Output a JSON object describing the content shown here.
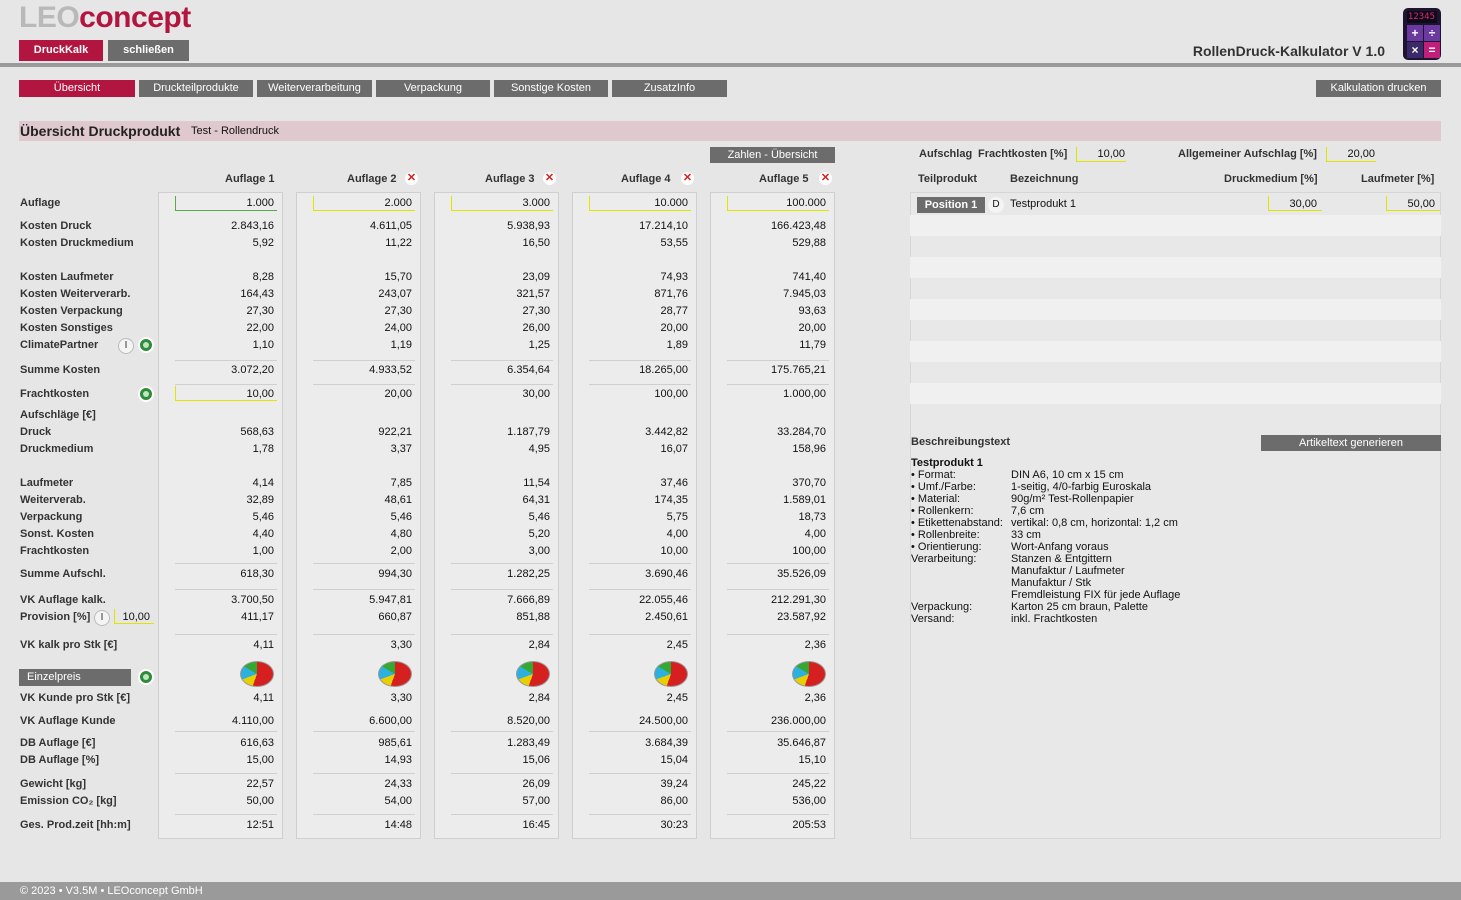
{
  "app": {
    "logo_gray": "LEO",
    "logo_red": "concept",
    "title": "RollenDruck-Kalkulator V 1.0",
    "calc_display": "12345"
  },
  "top_buttons": {
    "druckkalk": "DruckKalk",
    "close": "schließen"
  },
  "tabs": [
    "Übersicht",
    "Druckteilprodukte",
    "Weiterverarbeitung",
    "Verpackung",
    "Sonstige Kosten",
    "ZusatzInfo"
  ],
  "print_button": "Kalkulation drucken",
  "section": {
    "title": "Übersicht Druckprodukt",
    "subtitle": "Test - Rollendruck"
  },
  "zahlen_button": "Zahlen - Übersicht",
  "row_labels": {
    "auflage": "Auflage",
    "kosten_druck": "Kosten Druck",
    "kosten_druckmedium": "Kosten Druckmedium",
    "kosten_laufmeter": "Kosten Laufmeter",
    "kosten_weiterverarb": "Kosten Weiterverarb.",
    "kosten_verpackung": "Kosten Verpackung",
    "kosten_sonstiges": "Kosten Sonstiges",
    "climate": "ClimatePartner",
    "summe_kosten": "Summe Kosten",
    "frachtkosten": "Frachtkosten",
    "aufschlaege": "Aufschläge [€]",
    "druck": "Druck",
    "druckmedium": "Druckmedium",
    "laufmeter": "Laufmeter",
    "weiterverab": "Weiterverab.",
    "verpackung": "Verpackung",
    "sonst_kosten": "Sonst. Kosten",
    "frachtkosten2": "Frachtkosten",
    "summe_aufschl": "Summe Aufschl.",
    "vk_auflage_kalk": "VK Auflage kalk.",
    "provision": "Provision [%]",
    "vk_kalk_stk": "VK kalk pro Stk [€]",
    "einzelpreis": "Einzelpreis",
    "vk_kunde_stk": "VK Kunde pro Stk [€]",
    "vk_auflage_kunde": "VK Auflage Kunde",
    "db_auflage_eur": "DB Auflage [€]",
    "db_auflage_pct": "DB Auflage [%]",
    "gewicht": "Gewicht [kg]",
    "emission": "Emission CO₂ [kg]",
    "prodzeit": "Ges. Prod.zeit [hh:m]"
  },
  "provision_value": "10,00",
  "columns": [
    {
      "header": "Auflage 1",
      "auflage": "1.000",
      "kosten_druck": "2.843,16",
      "kosten_druckmedium": "5,92",
      "kosten_laufmeter": "8,28",
      "kosten_weiterverarb": "164,43",
      "kosten_verpackung": "27,30",
      "kosten_sonstiges": "22,00",
      "climate": "1,10",
      "summe_kosten": "3.072,20",
      "frachtkosten": "10,00",
      "druck": "568,63",
      "druckmedium": "1,78",
      "laufmeter": "4,14",
      "weiterverab": "32,89",
      "verpackung": "5,46",
      "sonst_kosten": "4,40",
      "frachtkosten2": "1,00",
      "summe_aufschl": "618,30",
      "vk_auflage_kalk": "3.700,50",
      "provision": "411,17",
      "vk_kalk_stk": "4,11",
      "vk_kunde_stk": "4,11",
      "vk_auflage_kunde": "4.110,00",
      "db_auflage_eur": "616,63",
      "db_auflage_pct": "15,00",
      "gewicht": "22,57",
      "emission": "50,00",
      "prodzeit": "12:51"
    },
    {
      "header": "Auflage 2",
      "auflage": "2.000",
      "kosten_druck": "4.611,05",
      "kosten_druckmedium": "11,22",
      "kosten_laufmeter": "15,70",
      "kosten_weiterverarb": "243,07",
      "kosten_verpackung": "27,30",
      "kosten_sonstiges": "24,00",
      "climate": "1,19",
      "summe_kosten": "4.933,52",
      "frachtkosten": "20,00",
      "druck": "922,21",
      "druckmedium": "3,37",
      "laufmeter": "7,85",
      "weiterverab": "48,61",
      "verpackung": "5,46",
      "sonst_kosten": "4,80",
      "frachtkosten2": "2,00",
      "summe_aufschl": "994,30",
      "vk_auflage_kalk": "5.947,81",
      "provision": "660,87",
      "vk_kalk_stk": "3,30",
      "vk_kunde_stk": "3,30",
      "vk_auflage_kunde": "6.600,00",
      "db_auflage_eur": "985,61",
      "db_auflage_pct": "14,93",
      "gewicht": "24,33",
      "emission": "54,00",
      "prodzeit": "14:48"
    },
    {
      "header": "Auflage 3",
      "auflage": "3.000",
      "kosten_druck": "5.938,93",
      "kosten_druckmedium": "16,50",
      "kosten_laufmeter": "23,09",
      "kosten_weiterverarb": "321,57",
      "kosten_verpackung": "27,30",
      "kosten_sonstiges": "26,00",
      "climate": "1,25",
      "summe_kosten": "6.354,64",
      "frachtkosten": "30,00",
      "druck": "1.187,79",
      "druckmedium": "4,95",
      "laufmeter": "11,54",
      "weiterverab": "64,31",
      "verpackung": "5,46",
      "sonst_kosten": "5,20",
      "frachtkosten2": "3,00",
      "summe_aufschl": "1.282,25",
      "vk_auflage_kalk": "7.666,89",
      "provision": "851,88",
      "vk_kalk_stk": "2,84",
      "vk_kunde_stk": "2,84",
      "vk_auflage_kunde": "8.520,00",
      "db_auflage_eur": "1.283,49",
      "db_auflage_pct": "15,06",
      "gewicht": "26,09",
      "emission": "57,00",
      "prodzeit": "16:45"
    },
    {
      "header": "Auflage 4",
      "auflage": "10.000",
      "kosten_druck": "17.214,10",
      "kosten_druckmedium": "53,55",
      "kosten_laufmeter": "74,93",
      "kosten_weiterverarb": "871,76",
      "kosten_verpackung": "28,77",
      "kosten_sonstiges": "20,00",
      "climate": "1,89",
      "summe_kosten": "18.265,00",
      "frachtkosten": "100,00",
      "druck": "3.442,82",
      "druckmedium": "16,07",
      "laufmeter": "37,46",
      "weiterverab": "174,35",
      "verpackung": "5,75",
      "sonst_kosten": "4,00",
      "frachtkosten2": "10,00",
      "summe_aufschl": "3.690,46",
      "vk_auflage_kalk": "22.055,46",
      "provision": "2.450,61",
      "vk_kalk_stk": "2,45",
      "vk_kunde_stk": "2,45",
      "vk_auflage_kunde": "24.500,00",
      "db_auflage_eur": "3.684,39",
      "db_auflage_pct": "15,04",
      "gewicht": "39,24",
      "emission": "86,00",
      "prodzeit": "30:23"
    },
    {
      "header": "Auflage 5",
      "auflage": "100.000",
      "kosten_druck": "166.423,48",
      "kosten_druckmedium": "529,88",
      "kosten_laufmeter": "741,40",
      "kosten_weiterverarb": "7.945,03",
      "kosten_verpackung": "93,63",
      "kosten_sonstiges": "20,00",
      "climate": "11,79",
      "summe_kosten": "175.765,21",
      "frachtkosten": "1.000,00",
      "druck": "33.284,70",
      "druckmedium": "158,96",
      "laufmeter": "370,70",
      "weiterverab": "1.589,01",
      "verpackung": "18,73",
      "sonst_kosten": "4,00",
      "frachtkosten2": "100,00",
      "summe_aufschl": "35.526,09",
      "vk_auflage_kalk": "212.291,30",
      "provision": "23.587,92",
      "vk_kalk_stk": "2,36",
      "vk_kunde_stk": "2,36",
      "vk_auflage_kunde": "236.000,00",
      "db_auflage_eur": "35.646,87",
      "db_auflage_pct": "15,10",
      "gewicht": "245,22",
      "emission": "536,00",
      "prodzeit": "205:53"
    }
  ],
  "right": {
    "aufschlag_label": "Aufschlag",
    "fracht_label": "Frachtkosten [%]",
    "fracht_value": "10,00",
    "allg_label": "Allgemeiner Aufschlag [%]",
    "allg_value": "20,00",
    "col_teilprodukt": "Teilprodukt",
    "col_bezeichnung": "Bezeichnung",
    "col_druckmedium": "Druckmedium [%]",
    "col_laufmeter": "Laufmeter [%]",
    "position_label": "Position 1",
    "d_label": "D",
    "position_name": "Testprodukt 1",
    "position_druckmedium": "30,00",
    "position_laufmeter": "50,00",
    "beschreibung_label": "Beschreibungstext",
    "artikeltext_button": "Artikeltext generieren",
    "desc_title": "Testprodukt 1",
    "desc_rows": [
      [
        "• Format:",
        "DIN A6, 10 cm x 15 cm"
      ],
      [
        "• Umf./Farbe:",
        "1-seitig, 4/0-farbig Euroskala"
      ],
      [
        "• Material:",
        "90g/m² Test-Rollenpapier"
      ],
      [
        "• Rollenkern:",
        "7,6 cm"
      ],
      [
        "• Etikettenabstand:",
        "vertikal: 0,8 cm, horizontal: 1,2 cm"
      ],
      [
        "• Rollenbreite:",
        "33 cm"
      ],
      [
        "• Orientierung:",
        "Wort-Anfang voraus"
      ],
      [
        "Verarbeitung:",
        "Stanzen & Entgittern"
      ],
      [
        "",
        "Manufaktur / Laufmeter"
      ],
      [
        "",
        "Manufaktur / Stk"
      ],
      [
        "",
        "Fremdleistung FIX für jede Auflage"
      ],
      [
        "Verpackung:",
        "Karton 25 cm braun, Palette"
      ],
      [
        "Versand:",
        "inkl. Frachtkosten"
      ]
    ]
  },
  "footer": "© 2023 • V3.5M • LEOconcept GmbH",
  "colors": {
    "brand_red": "#b2153f",
    "button_grey": "#6c6c6c",
    "section_bg": "#dfc9cf"
  }
}
